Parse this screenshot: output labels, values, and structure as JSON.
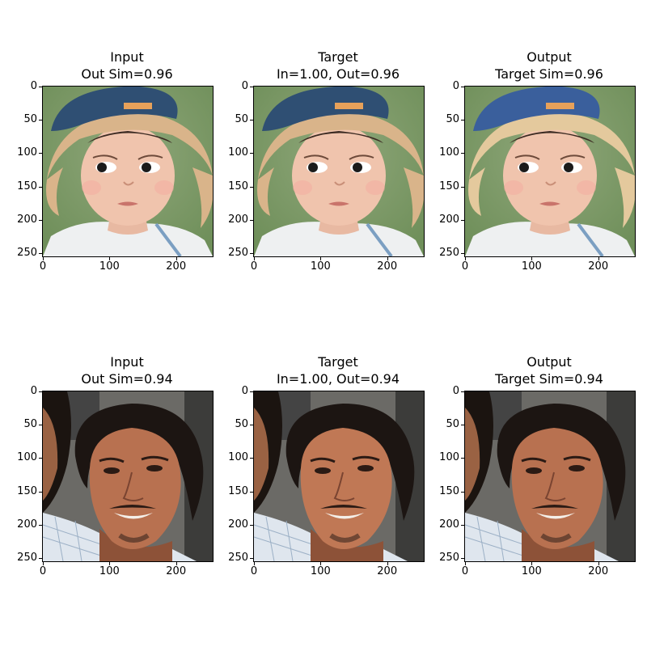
{
  "figure": {
    "rows": [
      {
        "panels": [
          {
            "title_line1": "Input",
            "title_line2": "Out Sim=0.96"
          },
          {
            "title_line1": "Target",
            "title_line2": "In=1.00, Out=0.96"
          },
          {
            "title_line1": "Output",
            "title_line2": "Target Sim=0.96"
          }
        ],
        "subject": "child-in-straw-hat"
      },
      {
        "panels": [
          {
            "title_line1": "Input",
            "title_line2": "Out Sim=0.94"
          },
          {
            "title_line1": "Target",
            "title_line2": "In=1.00, Out=0.94"
          },
          {
            "title_line1": "Output",
            "title_line2": "Target Sim=0.94"
          }
        ],
        "subject": "curly-haired-man"
      }
    ],
    "axes": {
      "x_ticks": [
        "0",
        "100",
        "200"
      ],
      "y_ticks": [
        "0",
        "50",
        "100",
        "150",
        "200",
        "250"
      ]
    },
    "colors": {
      "hat_blue": "#2f4f73",
      "hat_straw": "#d9b48a",
      "skin_child": "#f0c4ad",
      "bg_green": "#6f8f5a",
      "skin_man": "#b87150",
      "hair_dark": "#1c1512",
      "bg_gray": "#6b6a66"
    }
  }
}
